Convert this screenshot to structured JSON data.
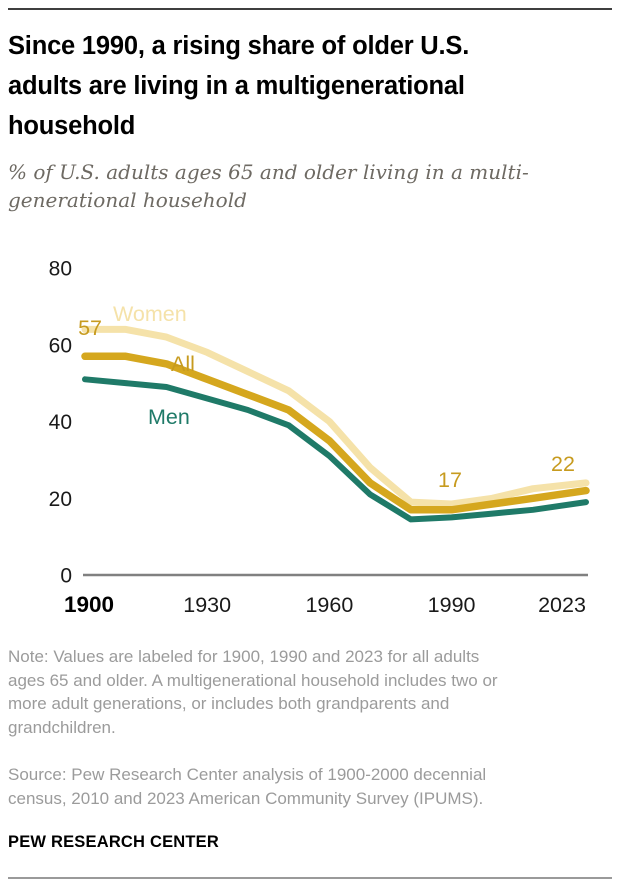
{
  "page": {
    "title_lines": [
      "Since 1990, a rising share of older U.S.",
      "adults are living in a multigenerational",
      "household"
    ],
    "subtitle_lines": [
      "% of U.S. adults ages 65 and older living in a multi-",
      "generational household"
    ],
    "note_lines": [
      "Note: Values are labeled for 1900, 1990 and 2023 for all adults",
      "ages 65 and older. A multigenerational household includes two or",
      "more adult generations, or includes both grandparents and",
      "grandchildren."
    ],
    "source_lines": [
      "Source: Pew Research Center analysis of 1900-2000 decennial",
      "census, 2010 and 2023 American Community Survey (IPUMS)."
    ],
    "brand": "PEW RESEARCH CENTER"
  },
  "colors": {
    "women_line": "#F5E2A9",
    "all_line": "#D5A71E",
    "gold_text": "#C79B1F",
    "men_line": "#1F7A68",
    "axis_line": "#808080",
    "tick_text": "#1a1a1a",
    "bold_tick_text": "#000000"
  },
  "chart_data": {
    "type": "line",
    "title": "Since 1990, a rising share of older U.S. adults are living in a multigenerational household",
    "subtitle": "% of U.S. adults ages 65 and older living in a multigenerational household",
    "x": [
      1900,
      1910,
      1920,
      1930,
      1940,
      1950,
      1960,
      1970,
      1980,
      1990,
      2000,
      2010,
      2023
    ],
    "series": [
      {
        "name": "Women",
        "values": [
          64,
          64,
          62,
          58,
          53,
          48,
          40,
          28,
          19,
          18.5,
          20,
          22.5,
          24
        ]
      },
      {
        "name": "All",
        "values": [
          57,
          57,
          55,
          51,
          47,
          43,
          35,
          24,
          17,
          17,
          18.5,
          20,
          22
        ]
      },
      {
        "name": "Men",
        "values": [
          51,
          50,
          49,
          46,
          43,
          39,
          31,
          21,
          14.5,
          15,
          16,
          17,
          19
        ]
      }
    ],
    "y_ticks": [
      0,
      20,
      40,
      60,
      80
    ],
    "ylim": [
      0,
      80
    ],
    "x_tick_labels": [
      "1900",
      "1930",
      "1960",
      "1990",
      "2023"
    ],
    "annotations": [
      {
        "text": "57",
        "series": "All",
        "year": 1900
      },
      {
        "text": "17",
        "series": "All",
        "year": 1990
      },
      {
        "text": "22",
        "series": "All",
        "year": 2023
      }
    ],
    "legend_position": "inline-labels",
    "grid": false
  }
}
